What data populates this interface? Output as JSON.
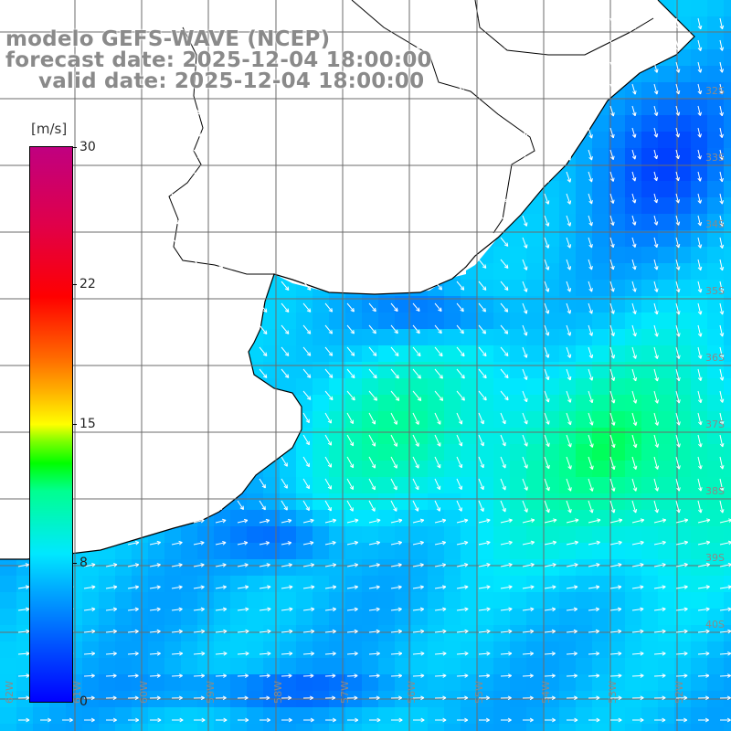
{
  "header": {
    "model_line": "modelo GEFS-WAVE (NCEP)",
    "forecast_line": "forecast date: 2025-12-04 18:00:00",
    "valid_line": "valid date: 2025-12-04 18:00:00"
  },
  "colorbar": {
    "unit": "[m/s]",
    "ticks": [
      "30",
      "22",
      "15",
      "8",
      "0"
    ],
    "range": [
      0,
      30
    ]
  },
  "lat_labels": [
    "32S",
    "33S",
    "34S",
    "35S",
    "36S",
    "37S",
    "38S",
    "39S",
    "40S"
  ],
  "lon_labels": [
    "62W",
    "61W",
    "60W",
    "59W",
    "58W",
    "57W",
    "56W",
    "55W",
    "54W",
    "53W",
    "52W"
  ],
  "colors": {
    "grid": "#6b6b6b",
    "coast": "#000000",
    "land": "#ffffff",
    "arrow": "#ffffff",
    "label_gray": "#8a8a8a"
  }
}
